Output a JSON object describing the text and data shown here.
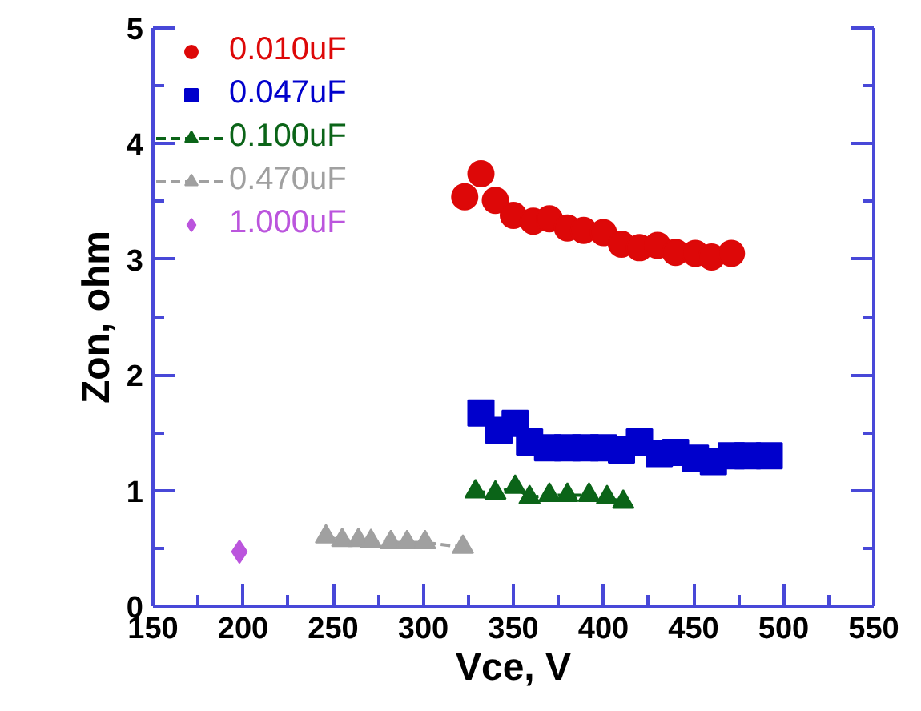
{
  "chart_data": {
    "type": "scatter",
    "xlabel": "Vce, V",
    "ylabel": "Zon, ohm",
    "xlim": [
      150,
      550
    ],
    "ylim": [
      0,
      5
    ],
    "xticks": [
      150,
      200,
      250,
      300,
      350,
      400,
      450,
      500,
      550
    ],
    "yticks": [
      0,
      1,
      2,
      3,
      4,
      5
    ],
    "grid": false,
    "legend": "top left",
    "series": [
      {
        "name": "0.010uF",
        "color": "#dd0808",
        "marker": "circle",
        "line_style": "solid",
        "x": [
          323,
          332,
          340,
          350,
          361,
          370,
          380,
          389,
          400,
          410,
          420,
          430,
          440,
          451,
          460,
          471
        ],
        "values": [
          3.54,
          3.74,
          3.51,
          3.38,
          3.33,
          3.35,
          3.27,
          3.25,
          3.23,
          3.13,
          3.1,
          3.12,
          3.06,
          3.05,
          3.02,
          3.05
        ]
      },
      {
        "name": "0.047uF",
        "color": "#0000cc",
        "marker": "square",
        "line_style": "dotted",
        "x": [
          332,
          342,
          351,
          359,
          369,
          380,
          390,
          400,
          410,
          420,
          431,
          440,
          451,
          461,
          471,
          480,
          492
        ],
        "values": [
          1.67,
          1.52,
          1.58,
          1.42,
          1.37,
          1.37,
          1.37,
          1.37,
          1.35,
          1.42,
          1.32,
          1.33,
          1.28,
          1.25,
          1.3,
          1.3,
          1.3
        ]
      },
      {
        "name": "0.100uF",
        "color": "#0b6418",
        "type": "line",
        "marker": "triangle",
        "line_style": "dashed",
        "x": [
          329,
          340,
          351,
          359,
          370,
          380,
          392,
          402,
          411
        ],
        "values": [
          0.99,
          0.98,
          1.03,
          0.94,
          0.96,
          0.96,
          0.96,
          0.94,
          0.9
        ]
      },
      {
        "name": "0.470uF",
        "color": "#a0a0a0",
        "type": "line",
        "marker": "triangle",
        "line_style": "dashed",
        "x": [
          246,
          255,
          264,
          271,
          282,
          291,
          301,
          322
        ],
        "values": [
          0.6,
          0.57,
          0.57,
          0.56,
          0.55,
          0.55,
          0.55,
          0.51
        ]
      },
      {
        "name": "1.000uF",
        "color": "#bb55dd",
        "marker": "diamond",
        "line_style": "dotted",
        "x": [
          198
        ],
        "values": [
          0.47
        ]
      }
    ]
  }
}
